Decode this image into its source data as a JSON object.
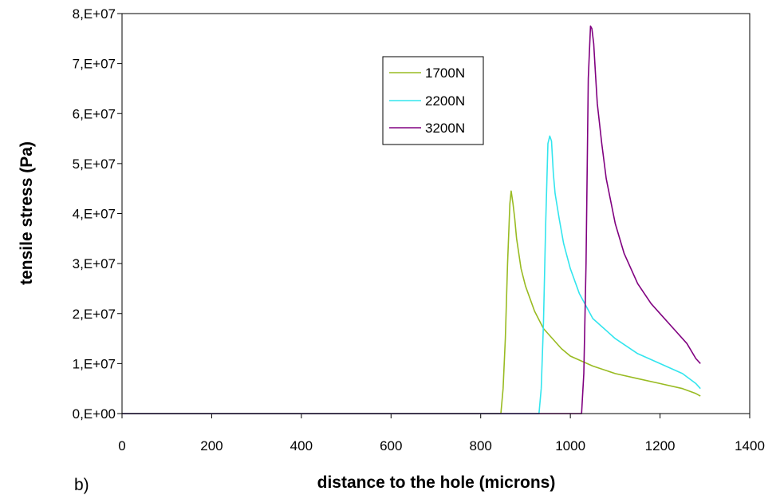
{
  "panel_label": "b)",
  "chart_data": {
    "type": "line",
    "xlabel": "distance to the hole (microns)",
    "ylabel": "tensile stress (Pa)",
    "xlim": [
      0,
      1400
    ],
    "ylim": [
      0,
      80000000
    ],
    "x_ticks": [
      0,
      200,
      400,
      600,
      800,
      1000,
      1200,
      1400
    ],
    "x_tick_labels": [
      "0",
      "200",
      "400",
      "600",
      "800",
      "1000",
      "1200",
      "1400"
    ],
    "y_ticks": [
      0,
      10000000,
      20000000,
      30000000,
      40000000,
      50000000,
      60000000,
      70000000,
      80000000
    ],
    "y_tick_labels": [
      "0,E+00",
      "1,E+07",
      "2,E+07",
      "3,E+07",
      "4,E+07",
      "5,E+07",
      "6,E+07",
      "7,E+07",
      "8,E+07"
    ],
    "grid": false,
    "legend_position": "upper-center",
    "series": [
      {
        "name": "1700N",
        "color": "#99bb22",
        "x": [
          0,
          845,
          850,
          855,
          860,
          865,
          868,
          872,
          876,
          880,
          890,
          900,
          920,
          940,
          960,
          980,
          1000,
          1050,
          1100,
          1150,
          1200,
          1250,
          1280,
          1290
        ],
        "y": [
          0,
          0,
          5000000,
          15000000,
          30000000,
          42000000,
          44500000,
          42000000,
          39000000,
          35000000,
          29000000,
          25500000,
          20500000,
          17000000,
          15000000,
          13000000,
          11500000,
          9500000,
          8000000,
          7000000,
          6000000,
          5000000,
          4000000,
          3500000
        ]
      },
      {
        "name": "2200N",
        "color": "#33e5ee",
        "x": [
          0,
          930,
          935,
          940,
          945,
          950,
          954,
          958,
          962,
          966,
          975,
          985,
          1000,
          1020,
          1050,
          1100,
          1150,
          1200,
          1250,
          1280,
          1290
        ],
        "y": [
          0,
          0,
          5000000,
          18000000,
          38000000,
          54000000,
          55500000,
          54500000,
          48000000,
          44000000,
          39000000,
          34000000,
          29000000,
          24000000,
          19000000,
          15000000,
          12000000,
          10000000,
          8000000,
          6000000,
          5000000
        ]
      },
      {
        "name": "3200N",
        "color": "#800080",
        "x": [
          0,
          1025,
          1030,
          1035,
          1040,
          1045,
          1048,
          1052,
          1056,
          1060,
          1070,
          1080,
          1100,
          1120,
          1150,
          1180,
          1200,
          1230,
          1260,
          1280,
          1290
        ],
        "y": [
          0,
          0,
          8000000,
          30000000,
          67000000,
          77500000,
          77000000,
          74000000,
          68000000,
          62000000,
          54000000,
          47000000,
          38000000,
          32000000,
          26000000,
          22000000,
          20000000,
          17000000,
          14000000,
          11000000,
          10000000
        ]
      }
    ]
  }
}
